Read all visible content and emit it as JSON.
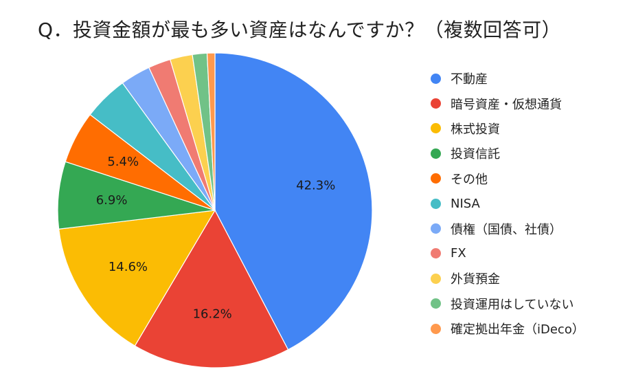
{
  "chart_data": {
    "type": "pie",
    "title": "Q．投資金額が最も多い資産はなんですか？（複数回答可）",
    "legend_position": "right",
    "slices": [
      {
        "name": "不動産",
        "value": 42.3,
        "label": "42.3%",
        "color": "#4285F4"
      },
      {
        "name": "暗号資産・仮想通貨",
        "value": 16.2,
        "label": "16.2%",
        "color": "#EA4335"
      },
      {
        "name": "株式投資",
        "value": 14.6,
        "label": "14.6%",
        "color": "#FBBC04"
      },
      {
        "name": "投資信託",
        "value": 6.9,
        "label": "6.9%",
        "color": "#34A853"
      },
      {
        "name": "その他",
        "value": 5.4,
        "label": "5.4%",
        "color": "#FF6D01"
      },
      {
        "name": "NISA",
        "value": 4.6,
        "label": "",
        "color": "#46BDC6"
      },
      {
        "name": "債権（国債、社債）",
        "value": 3.1,
        "label": "",
        "color": "#7BAAF7"
      },
      {
        "name": "FX",
        "value": 2.3,
        "label": "",
        "color": "#F07B72"
      },
      {
        "name": "外貨預金",
        "value": 2.3,
        "label": "",
        "color": "#FCD04F"
      },
      {
        "name": "投資運用はしていない",
        "value": 1.5,
        "label": "",
        "color": "#71C287"
      },
      {
        "name": "確定拠出年金（iDeco）",
        "value": 0.8,
        "label": "",
        "color": "#FF994D"
      }
    ]
  }
}
